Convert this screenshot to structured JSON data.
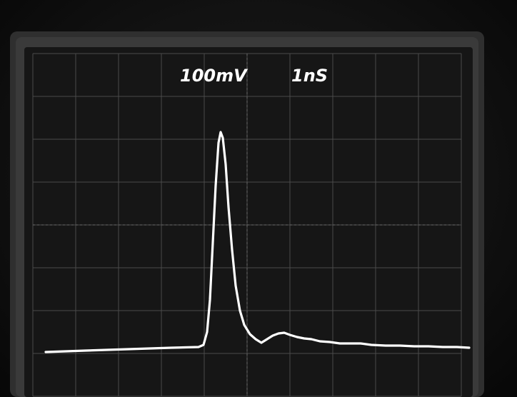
{
  "scope": {
    "volts_per_div": "100mV",
    "time_per_div": "1nS"
  }
}
